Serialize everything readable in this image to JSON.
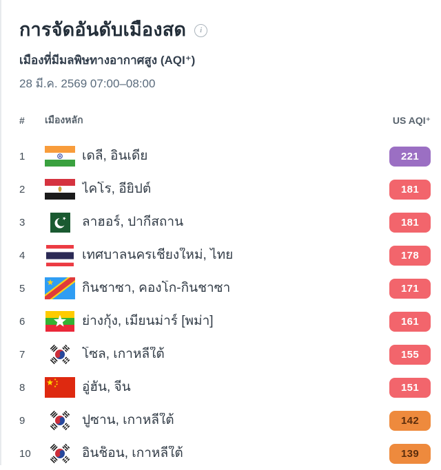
{
  "page": {
    "title": "การจัดอันดับเมืองสด",
    "subtitle": "เมืองที่มีมลพิษทางอากาศสูง (AQI⁺)",
    "timestamp": "28 มี.ค. 2569 07:00–08:00"
  },
  "icons": {
    "info": "i"
  },
  "table": {
    "headers": {
      "rank": "#",
      "city": "เมืองหลัก",
      "aqi": "US AQI⁺"
    },
    "rows": [
      {
        "rank": "1",
        "flag": "india",
        "city": "เดลี, อินเดีย",
        "aqi": "221",
        "level": "very_unhealthy"
      },
      {
        "rank": "2",
        "flag": "egypt",
        "city": "ไคโร, อียิปต์",
        "aqi": "181",
        "level": "unhealthy"
      },
      {
        "rank": "3",
        "flag": "pakistan",
        "city": "ลาฮอร์, ปากีสถาน",
        "aqi": "181",
        "level": "unhealthy"
      },
      {
        "rank": "4",
        "flag": "thailand",
        "city": "เทศบาลนครเชียงใหม่, ไทย",
        "aqi": "178",
        "level": "unhealthy"
      },
      {
        "rank": "5",
        "flag": "dr-congo",
        "city": "กินชาซา, คองโก-กินชาซา",
        "aqi": "171",
        "level": "unhealthy"
      },
      {
        "rank": "6",
        "flag": "myanmar",
        "city": "ย่างกุ้ง, เมียนม่าร์ [พม่า]",
        "aqi": "161",
        "level": "unhealthy"
      },
      {
        "rank": "7",
        "flag": "south-korea",
        "city": "โซล, เกาหลีใต้",
        "aqi": "155",
        "level": "unhealthy"
      },
      {
        "rank": "8",
        "flag": "china",
        "city": "อู่ฮั่น, จีน",
        "aqi": "151",
        "level": "unhealthy"
      },
      {
        "rank": "9",
        "flag": "south-korea",
        "city": "ปูซาน, เกาหลีใต้",
        "aqi": "142",
        "level": "unhealthy_sensitive"
      },
      {
        "rank": "10",
        "flag": "south-korea",
        "city": "อินช็อน, เกาหลีใต้",
        "aqi": "139",
        "level": "unhealthy_sensitive"
      }
    ]
  },
  "aqi_levels": {
    "very_unhealthy": {
      "bg": "#9B6FC3",
      "text": "#FFFFFF"
    },
    "unhealthy": {
      "bg": "#F2656C",
      "text": "#FFFFFF"
    },
    "unhealthy_sensitive": {
      "bg": "#EE8A3D",
      "text": "#5B2D0D"
    }
  }
}
